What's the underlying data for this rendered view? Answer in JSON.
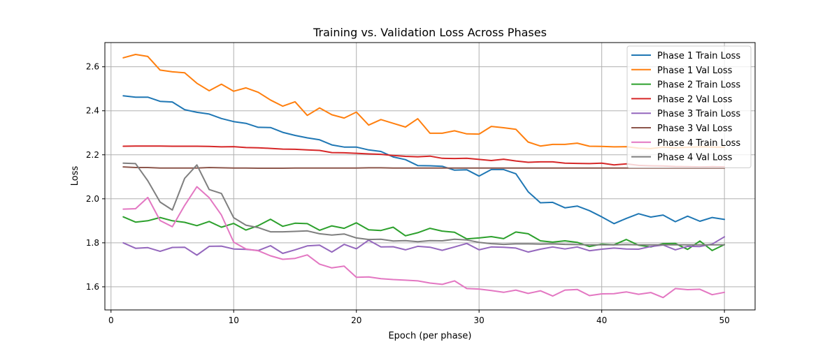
{
  "chart_data": {
    "type": "line",
    "title": "Training vs. Validation Loss Across Phases",
    "xlabel": "Epoch (per phase)",
    "ylabel": "Loss",
    "xlim": [
      -0.5,
      52.5
    ],
    "ylim": [
      1.495,
      2.71
    ],
    "xticks": [
      0,
      10,
      20,
      30,
      40,
      50
    ],
    "yticks": [
      1.6,
      1.8,
      2.0,
      2.2,
      2.4,
      2.6
    ],
    "ytick_labels": [
      "1.6",
      "1.8",
      "2.0",
      "2.2",
      "2.4",
      "2.6"
    ],
    "grid": true,
    "legend_position": "top-right",
    "x": [
      1,
      2,
      3,
      4,
      5,
      6,
      7,
      8,
      9,
      10,
      11,
      12,
      13,
      14,
      15,
      16,
      17,
      18,
      19,
      20,
      21,
      22,
      23,
      24,
      25,
      26,
      27,
      28,
      29,
      30,
      31,
      32,
      33,
      34,
      35,
      36,
      37,
      38,
      39,
      40,
      41,
      42,
      43,
      44,
      45,
      46,
      47,
      48,
      49,
      50
    ],
    "series": [
      {
        "name": "Phase 1 Train Loss",
        "color": "#1f77b4",
        "values": [
          2.468,
          2.462,
          2.462,
          2.443,
          2.44,
          2.405,
          2.393,
          2.385,
          2.365,
          2.351,
          2.343,
          2.325,
          2.324,
          2.302,
          2.288,
          2.277,
          2.268,
          2.245,
          2.235,
          2.235,
          2.222,
          2.215,
          2.19,
          2.178,
          2.151,
          2.15,
          2.148,
          2.13,
          2.132,
          2.103,
          2.133,
          2.133,
          2.114,
          2.032,
          1.982,
          1.984,
          1.959,
          1.967,
          1.946,
          1.918,
          1.887,
          1.911,
          1.932,
          1.917,
          1.926,
          1.896,
          1.921,
          1.898,
          1.915,
          1.906
        ]
      },
      {
        "name": "Phase 1 Val Loss",
        "color": "#ff7f0e",
        "values": [
          2.641,
          2.656,
          2.647,
          2.585,
          2.577,
          2.573,
          2.525,
          2.491,
          2.521,
          2.489,
          2.504,
          2.484,
          2.449,
          2.421,
          2.441,
          2.379,
          2.413,
          2.382,
          2.367,
          2.394,
          2.335,
          2.36,
          2.343,
          2.326,
          2.364,
          2.298,
          2.298,
          2.309,
          2.295,
          2.294,
          2.329,
          2.323,
          2.316,
          2.258,
          2.24,
          2.247,
          2.247,
          2.253,
          2.239,
          2.238,
          2.236,
          2.237,
          2.23,
          2.228,
          2.235,
          2.232,
          2.234,
          2.236,
          2.235,
          2.234
        ]
      },
      {
        "name": "Phase 2 Train Loss",
        "color": "#2ca02c",
        "values": [
          1.918,
          1.894,
          1.9,
          1.915,
          1.9,
          1.893,
          1.878,
          1.897,
          1.871,
          1.888,
          1.858,
          1.878,
          1.907,
          1.875,
          1.889,
          1.887,
          1.857,
          1.877,
          1.866,
          1.891,
          1.859,
          1.856,
          1.871,
          1.832,
          1.846,
          1.866,
          1.853,
          1.848,
          1.818,
          1.822,
          1.828,
          1.819,
          1.849,
          1.841,
          1.809,
          1.803,
          1.809,
          1.802,
          1.783,
          1.794,
          1.791,
          1.815,
          1.789,
          1.781,
          1.796,
          1.797,
          1.77,
          1.808,
          1.765,
          1.792
        ]
      },
      {
        "name": "Phase 2 Val Loss",
        "color": "#d62728",
        "values": [
          2.239,
          2.24,
          2.24,
          2.24,
          2.239,
          2.239,
          2.239,
          2.238,
          2.236,
          2.237,
          2.233,
          2.232,
          2.229,
          2.226,
          2.225,
          2.222,
          2.22,
          2.21,
          2.209,
          2.207,
          2.204,
          2.202,
          2.197,
          2.193,
          2.191,
          2.194,
          2.184,
          2.183,
          2.184,
          2.179,
          2.174,
          2.18,
          2.172,
          2.166,
          2.168,
          2.168,
          2.162,
          2.161,
          2.16,
          2.162,
          2.154,
          2.159,
          2.152,
          2.15,
          2.149,
          2.147,
          2.146,
          2.145,
          2.146,
          2.145
        ]
      },
      {
        "name": "Phase 3 Train Loss",
        "color": "#9467bd",
        "values": [
          1.8,
          1.775,
          1.778,
          1.761,
          1.779,
          1.78,
          1.744,
          1.784,
          1.785,
          1.772,
          1.77,
          1.765,
          1.787,
          1.752,
          1.768,
          1.786,
          1.789,
          1.758,
          1.793,
          1.773,
          1.812,
          1.781,
          1.782,
          1.768,
          1.784,
          1.78,
          1.766,
          1.781,
          1.797,
          1.768,
          1.781,
          1.78,
          1.776,
          1.758,
          1.771,
          1.781,
          1.772,
          1.781,
          1.764,
          1.771,
          1.776,
          1.772,
          1.771,
          1.783,
          1.79,
          1.768,
          1.784,
          1.783,
          1.794,
          1.827
        ]
      },
      {
        "name": "Phase 3 Val Loss",
        "color": "#8c564b",
        "values": [
          2.145,
          2.142,
          2.142,
          2.14,
          2.14,
          2.14,
          2.14,
          2.142,
          2.141,
          2.14,
          2.14,
          2.139,
          2.139,
          2.139,
          2.14,
          2.14,
          2.14,
          2.14,
          2.14,
          2.14,
          2.141,
          2.141,
          2.14,
          2.14,
          2.14,
          2.14,
          2.14,
          2.14,
          2.14,
          2.14,
          2.14,
          2.14,
          2.14,
          2.14,
          2.14,
          2.14,
          2.14,
          2.14,
          2.14,
          2.14,
          2.14,
          2.14,
          2.14,
          2.14,
          2.14,
          2.14,
          2.14,
          2.14,
          2.14,
          2.14
        ]
      },
      {
        "name": "Phase 4 Train Loss",
        "color": "#e377c2",
        "values": [
          1.953,
          1.955,
          2.006,
          1.901,
          1.873,
          1.97,
          2.055,
          2.005,
          1.926,
          1.803,
          1.772,
          1.764,
          1.741,
          1.725,
          1.729,
          1.745,
          1.703,
          1.686,
          1.694,
          1.643,
          1.645,
          1.637,
          1.633,
          1.63,
          1.627,
          1.617,
          1.611,
          1.627,
          1.592,
          1.59,
          1.583,
          1.575,
          1.585,
          1.57,
          1.582,
          1.558,
          1.585,
          1.588,
          1.56,
          1.568,
          1.569,
          1.577,
          1.566,
          1.574,
          1.551,
          1.592,
          1.587,
          1.589,
          1.564,
          1.575
        ]
      },
      {
        "name": "Phase 4 Val Loss",
        "color": "#7f7f7f",
        "values": [
          2.162,
          2.16,
          2.082,
          1.985,
          1.949,
          2.093,
          2.154,
          2.042,
          2.024,
          1.914,
          1.88,
          1.869,
          1.85,
          1.85,
          1.852,
          1.854,
          1.841,
          1.835,
          1.84,
          1.822,
          1.815,
          1.816,
          1.808,
          1.81,
          1.805,
          1.81,
          1.809,
          1.816,
          1.813,
          1.802,
          1.796,
          1.793,
          1.795,
          1.795,
          1.794,
          1.795,
          1.793,
          1.792,
          1.791,
          1.791,
          1.791,
          1.792,
          1.791,
          1.791,
          1.791,
          1.791,
          1.791,
          1.791,
          1.791,
          1.791
        ]
      }
    ]
  }
}
